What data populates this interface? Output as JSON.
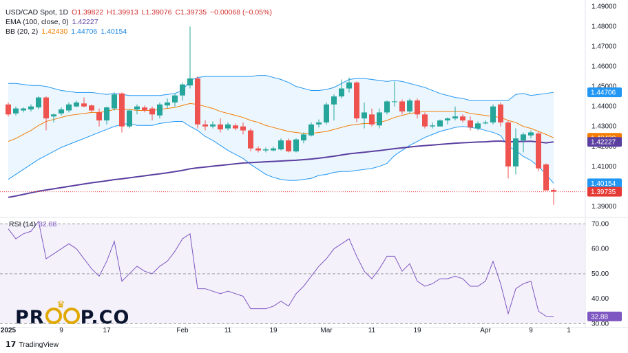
{
  "header": {
    "symbol_line": {
      "symbol": "USD/CAD Spot, 1D",
      "open": "O1.39822",
      "high": "H1.39913",
      "low": "L1.39076",
      "close": "C1.39735",
      "change": "−0.00068 (−0.05%)"
    },
    "ema_line": {
      "label": "EMA (100, close, 0)",
      "value": "1.42227"
    },
    "bb_line": {
      "label": "BB (20, 2)",
      "basis": "1.42430",
      "upper": "1.44706",
      "lower": "1.40154"
    }
  },
  "rsi_header": {
    "label": "RSI (14)",
    "value": "32.88"
  },
  "logo": {
    "text_left": "PR",
    "text_right": "P.CO"
  },
  "footer": {
    "brand": "TradingView"
  },
  "colors": {
    "up": "#26a69a",
    "down": "#ef5350",
    "ema": "#5b3fa0",
    "bb_basis": "#f57c00",
    "bb_band": "#2196f3",
    "bb_fill": "#e3f2fd",
    "rsi": "#7e57c2",
    "rsi_fill": "#ede7f6",
    "current_price": "#e53935"
  },
  "chart_data": [
    {
      "type": "candlestick",
      "title": "USD/CAD Spot, 1D",
      "ylim": [
        1.3855,
        1.4905
      ],
      "y_ticks": [
        "1.49000",
        "1.48000",
        "1.47000",
        "1.46000",
        "1.45000",
        "1.44000",
        "1.43000",
        "1.42000",
        "1.41000",
        "1.40000",
        "1.39000"
      ],
      "x_ticks": [
        {
          "label": "2025",
          "index": 0
        },
        {
          "label": "9",
          "index": 7
        },
        {
          "label": "17",
          "index": 13
        },
        {
          "label": "Feb",
          "index": 23
        },
        {
          "label": "11",
          "index": 29
        },
        {
          "label": "19",
          "index": 35
        },
        {
          "label": "Mar",
          "index": 42
        },
        {
          "label": "11",
          "index": 48
        },
        {
          "label": "19",
          "index": 54
        },
        {
          "label": "Apr",
          "index": 63
        },
        {
          "label": "9",
          "index": 69
        },
        {
          "label": "1",
          "index": 74
        }
      ],
      "candles": [
        {
          "o": 1.441,
          "h": 1.442,
          "l": 1.435,
          "c": 1.436
        },
        {
          "o": 1.4365,
          "h": 1.44,
          "l": 1.4355,
          "c": 1.439
        },
        {
          "o": 1.438,
          "h": 1.4395,
          "l": 1.437,
          "c": 1.439
        },
        {
          "o": 1.4385,
          "h": 1.441,
          "l": 1.4375,
          "c": 1.44
        },
        {
          "o": 1.4395,
          "h": 1.445,
          "l": 1.4385,
          "c": 1.4445
        },
        {
          "o": 1.4445,
          "h": 1.445,
          "l": 1.428,
          "c": 1.434
        },
        {
          "o": 1.435,
          "h": 1.4365,
          "l": 1.432,
          "c": 1.436
        },
        {
          "o": 1.4365,
          "h": 1.4395,
          "l": 1.4355,
          "c": 1.4385
        },
        {
          "o": 1.438,
          "h": 1.442,
          "l": 1.437,
          "c": 1.441
        },
        {
          "o": 1.44,
          "h": 1.443,
          "l": 1.4395,
          "c": 1.442
        },
        {
          "o": 1.4415,
          "h": 1.4445,
          "l": 1.4395,
          "c": 1.44
        },
        {
          "o": 1.4405,
          "h": 1.441,
          "l": 1.437,
          "c": 1.438
        },
        {
          "o": 1.437,
          "h": 1.439,
          "l": 1.43,
          "c": 1.433
        },
        {
          "o": 1.433,
          "h": 1.44,
          "l": 1.431,
          "c": 1.4395
        },
        {
          "o": 1.439,
          "h": 1.447,
          "l": 1.438,
          "c": 1.446
        },
        {
          "o": 1.4465,
          "h": 1.447,
          "l": 1.427,
          "c": 1.43
        },
        {
          "o": 1.43,
          "h": 1.4385,
          "l": 1.429,
          "c": 1.438
        },
        {
          "o": 1.4385,
          "h": 1.441,
          "l": 1.436,
          "c": 1.44
        },
        {
          "o": 1.4395,
          "h": 1.4405,
          "l": 1.437,
          "c": 1.438
        },
        {
          "o": 1.439,
          "h": 1.44,
          "l": 1.433,
          "c": 1.436
        },
        {
          "o": 1.4355,
          "h": 1.442,
          "l": 1.434,
          "c": 1.441
        },
        {
          "o": 1.4405,
          "h": 1.444,
          "l": 1.439,
          "c": 1.442
        },
        {
          "o": 1.442,
          "h": 1.4465,
          "l": 1.44,
          "c": 1.4455
        },
        {
          "o": 1.4455,
          "h": 1.452,
          "l": 1.443,
          "c": 1.451
        },
        {
          "o": 1.4505,
          "h": 1.48,
          "l": 1.449,
          "c": 1.454
        },
        {
          "o": 1.454,
          "h": 1.455,
          "l": 1.429,
          "c": 1.431
        },
        {
          "o": 1.431,
          "h": 1.433,
          "l": 1.428,
          "c": 1.43
        },
        {
          "o": 1.43,
          "h": 1.4325,
          "l": 1.429,
          "c": 1.431
        },
        {
          "o": 1.431,
          "h": 1.434,
          "l": 1.427,
          "c": 1.4285
        },
        {
          "o": 1.429,
          "h": 1.432,
          "l": 1.428,
          "c": 1.431
        },
        {
          "o": 1.4305,
          "h": 1.4315,
          "l": 1.428,
          "c": 1.429
        },
        {
          "o": 1.43,
          "h": 1.432,
          "l": 1.426,
          "c": 1.428
        },
        {
          "o": 1.428,
          "h": 1.429,
          "l": 1.4175,
          "c": 1.419
        },
        {
          "o": 1.419,
          "h": 1.42,
          "l": 1.417,
          "c": 1.418
        },
        {
          "o": 1.418,
          "h": 1.4195,
          "l": 1.417,
          "c": 1.4185
        },
        {
          "o": 1.418,
          "h": 1.42,
          "l": 1.4175,
          "c": 1.419
        },
        {
          "o": 1.4185,
          "h": 1.424,
          "l": 1.418,
          "c": 1.423
        },
        {
          "o": 1.423,
          "h": 1.424,
          "l": 1.417,
          "c": 1.4175
        },
        {
          "o": 1.4175,
          "h": 1.424,
          "l": 1.417,
          "c": 1.4235
        },
        {
          "o": 1.423,
          "h": 1.427,
          "l": 1.4215,
          "c": 1.426
        },
        {
          "o": 1.4255,
          "h": 1.432,
          "l": 1.425,
          "c": 1.431
        },
        {
          "o": 1.431,
          "h": 1.4335,
          "l": 1.4295,
          "c": 1.432
        },
        {
          "o": 1.432,
          "h": 1.442,
          "l": 1.431,
          "c": 1.441
        },
        {
          "o": 1.441,
          "h": 1.446,
          "l": 1.433,
          "c": 1.445
        },
        {
          "o": 1.445,
          "h": 1.4535,
          "l": 1.444,
          "c": 1.449
        },
        {
          "o": 1.449,
          "h": 1.4545,
          "l": 1.447,
          "c": 1.452
        },
        {
          "o": 1.452,
          "h": 1.4525,
          "l": 1.432,
          "c": 1.434
        },
        {
          "o": 1.434,
          "h": 1.442,
          "l": 1.429,
          "c": 1.437
        },
        {
          "o": 1.436,
          "h": 1.439,
          "l": 1.43,
          "c": 1.431
        },
        {
          "o": 1.4305,
          "h": 1.439,
          "l": 1.429,
          "c": 1.437
        },
        {
          "o": 1.437,
          "h": 1.443,
          "l": 1.436,
          "c": 1.4425
        },
        {
          "o": 1.4425,
          "h": 1.4525,
          "l": 1.44,
          "c": 1.4425
        },
        {
          "o": 1.4425,
          "h": 1.4435,
          "l": 1.436,
          "c": 1.4375
        },
        {
          "o": 1.4375,
          "h": 1.444,
          "l": 1.4365,
          "c": 1.443
        },
        {
          "o": 1.443,
          "h": 1.444,
          "l": 1.434,
          "c": 1.436
        },
        {
          "o": 1.436,
          "h": 1.437,
          "l": 1.429,
          "c": 1.43
        },
        {
          "o": 1.43,
          "h": 1.432,
          "l": 1.429,
          "c": 1.4305
        },
        {
          "o": 1.43,
          "h": 1.4335,
          "l": 1.43,
          "c": 1.433
        },
        {
          "o": 1.433,
          "h": 1.4345,
          "l": 1.431,
          "c": 1.434
        },
        {
          "o": 1.434,
          "h": 1.44,
          "l": 1.433,
          "c": 1.435
        },
        {
          "o": 1.435,
          "h": 1.436,
          "l": 1.432,
          "c": 1.433
        },
        {
          "o": 1.433,
          "h": 1.435,
          "l": 1.428,
          "c": 1.4295
        },
        {
          "o": 1.429,
          "h": 1.4325,
          "l": 1.428,
          "c": 1.4315
        },
        {
          "o": 1.4315,
          "h": 1.433,
          "l": 1.431,
          "c": 1.432
        },
        {
          "o": 1.432,
          "h": 1.441,
          "l": 1.431,
          "c": 1.44
        },
        {
          "o": 1.441,
          "h": 1.442,
          "l": 1.43,
          "c": 1.432
        },
        {
          "o": 1.432,
          "h": 1.433,
          "l": 1.404,
          "c": 1.41
        },
        {
          "o": 1.41,
          "h": 1.429,
          "l": 1.406,
          "c": 1.424
        },
        {
          "o": 1.423,
          "h": 1.427,
          "l": 1.417,
          "c": 1.426
        },
        {
          "o": 1.4255,
          "h": 1.428,
          "l": 1.424,
          "c": 1.427
        },
        {
          "o": 1.4265,
          "h": 1.4275,
          "l": 1.4075,
          "c": 1.409
        },
        {
          "o": 1.411,
          "h": 1.4115,
          "l": 1.399,
          "c": 1.398
        },
        {
          "o": 1.39822,
          "h": 1.39913,
          "l": 1.39076,
          "c": 1.39735
        }
      ],
      "ema_100": [
        1.3945,
        1.3952,
        1.396,
        1.3968,
        1.3976,
        1.3982,
        1.3988,
        1.3994,
        1.4,
        1.4006,
        1.4012,
        1.4018,
        1.4023,
        1.4028,
        1.4034,
        1.4038,
        1.4043,
        1.4048,
        1.4053,
        1.4058,
        1.4063,
        1.4068,
        1.4074,
        1.408,
        1.4088,
        1.4093,
        1.4097,
        1.4101,
        1.4105,
        1.4109,
        1.4113,
        1.4117,
        1.4119,
        1.4121,
        1.4123,
        1.4125,
        1.4127,
        1.4129,
        1.4131,
        1.4134,
        1.4137,
        1.4141,
        1.4146,
        1.4151,
        1.4157,
        1.4163,
        1.4167,
        1.4171,
        1.4175,
        1.4179,
        1.4184,
        1.4189,
        1.4193,
        1.4197,
        1.4201,
        1.4204,
        1.4207,
        1.421,
        1.4213,
        1.4216,
        1.4218,
        1.422,
        1.4222,
        1.4223,
        1.4226,
        1.4227,
        1.4223,
        1.4224,
        1.4225,
        1.4226,
        1.4222,
        1.4218,
        1.42227
      ],
      "bb_upper": [
        1.4515,
        1.4515,
        1.451,
        1.4505,
        1.4505,
        1.45,
        1.449,
        1.448,
        1.4475,
        1.447,
        1.447,
        1.447,
        1.4465,
        1.446,
        1.4465,
        1.446,
        1.4455,
        1.4455,
        1.4455,
        1.4455,
        1.4455,
        1.446,
        1.4465,
        1.448,
        1.453,
        1.4545,
        1.455,
        1.455,
        1.455,
        1.455,
        1.455,
        1.455,
        1.455,
        1.4555,
        1.4555,
        1.4545,
        1.4535,
        1.452,
        1.45,
        1.449,
        1.448,
        1.448,
        1.4485,
        1.4495,
        1.4515,
        1.4535,
        1.454,
        1.454,
        1.4535,
        1.453,
        1.4525,
        1.453,
        1.4525,
        1.4515,
        1.4505,
        1.4495,
        1.448,
        1.4465,
        1.4455,
        1.4445,
        1.444,
        1.443,
        1.443,
        1.443,
        1.443,
        1.443,
        1.443,
        1.446,
        1.4465,
        1.4455,
        1.446,
        1.4465,
        1.44706
      ],
      "bb_basis": [
        1.4225,
        1.424,
        1.426,
        1.428,
        1.4305,
        1.4325,
        1.4335,
        1.4345,
        1.4355,
        1.436,
        1.4365,
        1.437,
        1.437,
        1.4375,
        1.4385,
        1.4385,
        1.4385,
        1.438,
        1.438,
        1.438,
        1.4385,
        1.439,
        1.4395,
        1.4405,
        1.4415,
        1.441,
        1.44,
        1.439,
        1.4375,
        1.4365,
        1.4355,
        1.4345,
        1.433,
        1.432,
        1.4305,
        1.4295,
        1.4285,
        1.4275,
        1.427,
        1.4265,
        1.4265,
        1.427,
        1.4275,
        1.4285,
        1.4295,
        1.4305,
        1.431,
        1.4315,
        1.4315,
        1.432,
        1.433,
        1.4345,
        1.4355,
        1.4365,
        1.437,
        1.4375,
        1.4375,
        1.4375,
        1.4375,
        1.4375,
        1.4375,
        1.4365,
        1.436,
        1.4355,
        1.435,
        1.4345,
        1.433,
        1.432,
        1.43,
        1.429,
        1.4275,
        1.426,
        1.4243
      ],
      "bb_lower": [
        1.4035,
        1.406,
        1.4085,
        1.411,
        1.4135,
        1.4155,
        1.4175,
        1.4195,
        1.421,
        1.4225,
        1.424,
        1.4255,
        1.427,
        1.4285,
        1.43,
        1.431,
        1.4315,
        1.4305,
        1.4305,
        1.4305,
        1.4315,
        1.432,
        1.4325,
        1.4325,
        1.43,
        1.428,
        1.425,
        1.423,
        1.4205,
        1.418,
        1.416,
        1.414,
        1.411,
        1.4085,
        1.406,
        1.4045,
        1.4035,
        1.403,
        1.403,
        1.4035,
        1.404,
        1.4055,
        1.406,
        1.407,
        1.4075,
        1.4075,
        1.408,
        1.4085,
        1.409,
        1.41,
        1.4115,
        1.4155,
        1.418,
        1.4205,
        1.4225,
        1.4245,
        1.426,
        1.4275,
        1.4285,
        1.4295,
        1.43,
        1.4295,
        1.429,
        1.428,
        1.427,
        1.4255,
        1.42,
        1.418,
        1.415,
        1.413,
        1.41,
        1.406,
        1.40154
      ],
      "current_price": 1.39735,
      "price_tags": [
        {
          "key": "bb_upper",
          "label": "1.44706"
        },
        {
          "key": "bb_basis",
          "label": "1.42430"
        },
        {
          "key": "ema_100",
          "label": "1.42227"
        },
        {
          "key": "bb_lower",
          "label": "1.40154"
        },
        {
          "key": "close",
          "label": "1.39735"
        }
      ]
    },
    {
      "type": "line",
      "title": "RSI (14)",
      "ylim": [
        29,
        72
      ],
      "y_ticks": [
        "70.00",
        "60.00",
        "50.00",
        "40.00",
        "30.00"
      ],
      "band": [
        30,
        70
      ],
      "midline": 50,
      "series": [
        {
          "name": "RSI (14)",
          "values": [
            68,
            64,
            66,
            67,
            71,
            56,
            58,
            60,
            62,
            60,
            56,
            52,
            49,
            55,
            63,
            47,
            50,
            53,
            51,
            50,
            53,
            55,
            59,
            64,
            66,
            44,
            44,
            43,
            42,
            43,
            42,
            41,
            36,
            36,
            36,
            37,
            39,
            37,
            42,
            45,
            49,
            53,
            56,
            60,
            62,
            64,
            57,
            51,
            48,
            52,
            57,
            57,
            51,
            54,
            47,
            45,
            46,
            48,
            48,
            49,
            48,
            45,
            45,
            47,
            55,
            46,
            34,
            44,
            46,
            47,
            35,
            33,
            32.88
          ]
        }
      ],
      "last_label": "32.88"
    }
  ]
}
